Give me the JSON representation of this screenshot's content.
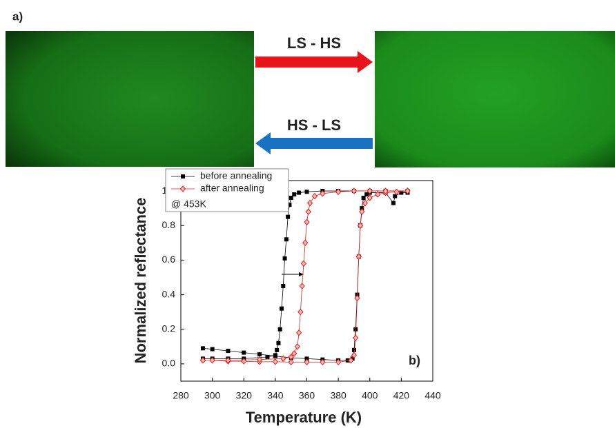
{
  "figure": {
    "panel_label": "a)",
    "arrow_forward": "LS - HS",
    "arrow_backward": "HS - LS"
  },
  "chart_data": {
    "type": "line",
    "xlabel": "Temperature (K)",
    "ylabel": "Normalized reflectance",
    "annotation": "b)",
    "legend_note": "@ 453K",
    "legend": "upper left",
    "xlim": [
      280,
      440
    ],
    "xticks": [
      280,
      300,
      320,
      340,
      360,
      380,
      400,
      420,
      440
    ],
    "ylim": [
      -0.1,
      1.06
    ],
    "yticks": [
      {
        "value": 0,
        "label": "0.0"
      },
      0.2,
      0.4,
      0.6,
      0.8,
      {
        "value": 1,
        "label": "1.0"
      }
    ],
    "series": [
      {
        "name": "before annealing",
        "color": "#000000",
        "marker": "square",
        "x": [
          294,
          300,
          310,
          320,
          330,
          340,
          350,
          360,
          370,
          380,
          386,
          389,
          390,
          391,
          392,
          393,
          394,
          395,
          396,
          398,
          400,
          410,
          415,
          416,
          420,
          424,
          424,
          410,
          400,
          390,
          380,
          370,
          360,
          355,
          352,
          350,
          349,
          348,
          347,
          346,
          345,
          344,
          343,
          342,
          341,
          340,
          335,
          320,
          310,
          300,
          294
        ],
        "values": [
          0.09,
          0.085,
          0.075,
          0.065,
          0.055,
          0.045,
          0.035,
          0.03,
          0.025,
          0.02,
          0.02,
          0.03,
          0.08,
          0.2,
          0.4,
          0.62,
          0.8,
          0.9,
          0.96,
          0.98,
          0.99,
          0.99,
          0.93,
          0.97,
          0.99,
          0.99,
          1.0,
          1.0,
          1.0,
          1.0,
          1.0,
          1.0,
          0.995,
          0.99,
          0.98,
          0.96,
          0.92,
          0.85,
          0.72,
          0.61,
          0.45,
          0.32,
          0.2,
          0.12,
          0.08,
          0.05,
          0.04,
          0.03,
          0.03,
          0.03,
          0.03
        ]
      },
      {
        "name": "after annealing",
        "color": "#e0201c",
        "fill": "#f5b8b4",
        "marker": "diamond",
        "x": [
          294,
          300,
          310,
          320,
          330,
          340,
          350,
          360,
          370,
          380,
          388,
          390,
          391,
          392,
          393,
          394,
          395,
          397,
          400,
          405,
          410,
          417,
          424,
          424,
          410,
          400,
          390,
          380,
          370,
          365,
          362,
          361,
          360,
          359,
          358,
          357,
          356,
          355,
          354,
          352,
          350,
          345,
          330,
          310,
          294
        ],
        "values": [
          0.02,
          0.02,
          0.015,
          0.015,
          0.012,
          0.012,
          0.01,
          0.01,
          0.01,
          0.01,
          0.02,
          0.05,
          0.15,
          0.38,
          0.62,
          0.8,
          0.88,
          0.93,
          0.96,
          0.98,
          0.99,
          0.995,
          1.0,
          1.0,
          1.0,
          1.0,
          1.0,
          0.995,
          0.985,
          0.97,
          0.93,
          0.88,
          0.82,
          0.7,
          0.58,
          0.45,
          0.3,
          0.18,
          0.1,
          0.06,
          0.04,
          0.03,
          0.025,
          0.02,
          0.02
        ]
      }
    ]
  }
}
